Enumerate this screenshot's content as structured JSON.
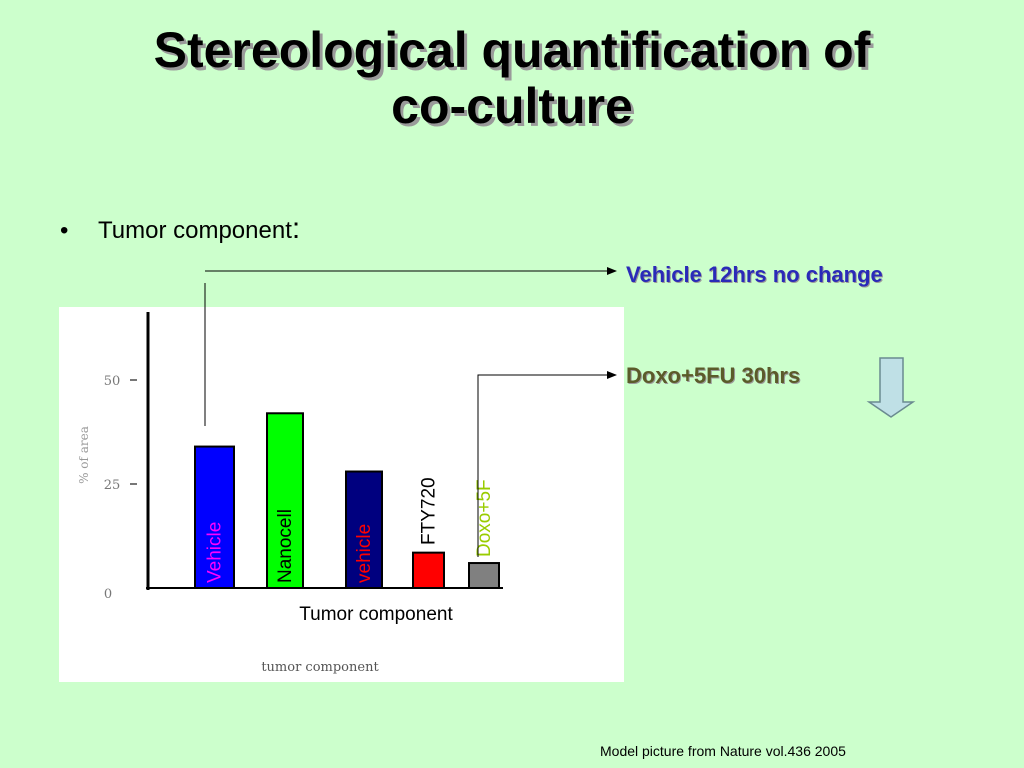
{
  "slide": {
    "title_line1": "Stereological quantification of",
    "title_line2": "co-culture",
    "bullet": "Tumor component",
    "bullet_colon": ":",
    "note_vehicle": "Vehicle 12hrs no change",
    "note_doxo": "Doxo+5FU 30hrs",
    "caption": "Model picture from Nature vol.436 2005"
  },
  "colors": {
    "background": "#ccffcc",
    "note_vehicle": "#2a2ab8",
    "note_doxo": "#5b5b2a",
    "down_arrow_fill": "#bfe0e6"
  },
  "chart_data": {
    "type": "bar",
    "ylabel": "% of area",
    "xlabel": "tumor component",
    "xlabel_overlay": "Tumor component",
    "ylim": [
      0,
      50
    ],
    "yticks": [
      {
        "value": 50,
        "label": "50"
      },
      {
        "value": 25,
        "label": "25"
      },
      {
        "value": 0,
        "label": "0"
      }
    ],
    "categories": [
      "Vehicle",
      "Nanocell",
      "vehicle",
      "FTY720",
      "Doxo+5F"
    ],
    "values": [
      34,
      42,
      28,
      8.5,
      6
    ],
    "bar_colors": [
      "#0000ff",
      "#00ff00",
      "#00007f",
      "#ff0000",
      "#808080"
    ],
    "label_colors": [
      "#ff00ff",
      "#000000",
      "#ff0000",
      "#000000",
      "#99cc00"
    ]
  }
}
